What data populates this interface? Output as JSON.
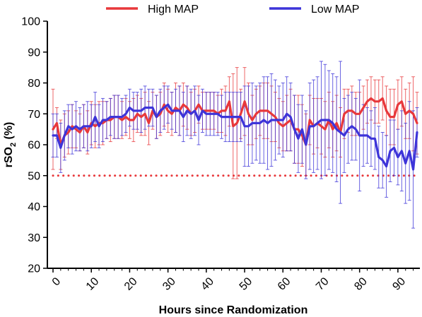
{
  "chart_data": {
    "type": "line",
    "title": "",
    "xlabel": "Hours since Randomization",
    "ylabel": "rSO",
    "ylabel_sub": "2",
    "ylabel_suffix": " (%)",
    "xlim": [
      0,
      95
    ],
    "ylim": [
      20,
      100
    ],
    "xticks": [
      "0",
      "10",
      "20",
      "30",
      "40",
      "50",
      "60",
      "70",
      "80",
      "90"
    ],
    "yticks": [
      "20",
      "30",
      "40",
      "50",
      "60",
      "70",
      "80",
      "90",
      "100"
    ],
    "grid": false,
    "legend_position": "top",
    "threshold": {
      "value": 50,
      "style": "dotted",
      "color": "#e8383b"
    },
    "x": [
      0,
      1,
      2,
      3,
      4,
      5,
      6,
      7,
      8,
      9,
      10,
      11,
      12,
      13,
      14,
      15,
      16,
      17,
      18,
      19,
      20,
      21,
      22,
      23,
      24,
      25,
      26,
      27,
      28,
      29,
      30,
      31,
      32,
      33,
      34,
      35,
      36,
      37,
      38,
      39,
      40,
      41,
      42,
      43,
      44,
      45,
      46,
      47,
      48,
      49,
      50,
      51,
      52,
      53,
      54,
      55,
      56,
      57,
      58,
      59,
      60,
      61,
      62,
      63,
      64,
      65,
      66,
      67,
      68,
      69,
      70,
      71,
      72,
      73,
      74,
      75,
      76,
      77,
      78,
      79,
      80,
      81,
      82,
      83,
      84,
      85,
      86,
      87,
      88,
      89,
      90,
      91,
      92,
      93,
      94,
      95
    ],
    "series": [
      {
        "name": "High  MAP",
        "color": "#e8383b",
        "values": [
          65,
          67,
          60,
          63,
          64,
          66,
          65,
          64,
          66,
          64,
          67,
          66,
          67,
          67,
          68,
          68,
          69,
          69,
          68,
          69,
          68,
          68,
          70,
          69,
          70,
          67,
          71,
          69,
          70,
          73,
          71,
          70,
          72,
          71,
          73,
          72,
          70,
          71,
          73,
          71,
          71,
          71,
          71,
          70,
          71,
          71,
          74,
          66,
          67,
          70,
          74,
          70,
          68,
          70,
          71,
          71,
          71,
          70,
          69,
          67,
          66,
          67,
          68,
          65,
          65,
          63,
          60,
          68,
          66,
          67,
          66,
          65,
          68,
          65,
          67,
          64,
          70,
          71,
          71,
          70,
          70,
          72,
          74,
          75,
          74,
          74,
          75,
          71,
          69,
          69,
          73,
          74,
          70,
          71,
          70,
          67
        ],
        "err": [
          13,
          5,
          8,
          7,
          7,
          7,
          6,
          6,
          7,
          7,
          7,
          7,
          7,
          7,
          6,
          7,
          7,
          7,
          6,
          6,
          6,
          7,
          6,
          6,
          7,
          7,
          6,
          7,
          7,
          7,
          7,
          7,
          8,
          8,
          7,
          7,
          7,
          7,
          6,
          6,
          6,
          6,
          6,
          6,
          7,
          8,
          8,
          17,
          18,
          8,
          11,
          10,
          8,
          8,
          8,
          9,
          9,
          9,
          8,
          8,
          8,
          9,
          10,
          11,
          11,
          10,
          10,
          8,
          9,
          8,
          9,
          9,
          9,
          9,
          9,
          8,
          8,
          7,
          8,
          7,
          7,
          7,
          7,
          7,
          7,
          7,
          7,
          8,
          9,
          9,
          8,
          8,
          8,
          9,
          12,
          10
        ]
      },
      {
        "name": "Low MAP",
        "color": "#3d34d9",
        "values": [
          63,
          63,
          59,
          63,
          66,
          65,
          66,
          65,
          66,
          66,
          66,
          69,
          66,
          68,
          68,
          69,
          69,
          69,
          69,
          70,
          72,
          71,
          71,
          71,
          72,
          72,
          72,
          69,
          71,
          72,
          73,
          71,
          71,
          71,
          69,
          71,
          70,
          71,
          68,
          71,
          70,
          70,
          70,
          70,
          69,
          69,
          69,
          69,
          69,
          69,
          66,
          66,
          67,
          67,
          67,
          68,
          67,
          68,
          68,
          68,
          68,
          70,
          69,
          65,
          62,
          65,
          60,
          66,
          66,
          67,
          68,
          68,
          68,
          67,
          65,
          64,
          63,
          65,
          66,
          65,
          63,
          63,
          63,
          62,
          62,
          56,
          55,
          53,
          58,
          59,
          56,
          58,
          54,
          58,
          52,
          64
        ],
        "err": [
          7,
          7,
          8,
          8,
          7,
          8,
          8,
          7,
          7,
          8,
          7,
          8,
          7,
          7,
          6,
          6,
          7,
          7,
          6,
          6,
          6,
          6,
          6,
          7,
          7,
          6,
          6,
          7,
          7,
          7,
          6,
          6,
          7,
          8,
          8,
          8,
          8,
          8,
          8,
          7,
          7,
          7,
          7,
          7,
          7,
          8,
          8,
          8,
          8,
          8,
          13,
          13,
          13,
          12,
          13,
          14,
          15,
          15,
          13,
          11,
          12,
          12,
          11,
          11,
          11,
          11,
          11,
          14,
          15,
          15,
          19,
          18,
          16,
          16,
          17,
          23,
          12,
          11,
          11,
          10,
          18,
          10,
          9,
          9,
          10,
          10,
          9,
          10,
          10,
          9,
          9,
          13,
          13,
          16,
          19,
          8
        ]
      }
    ]
  }
}
